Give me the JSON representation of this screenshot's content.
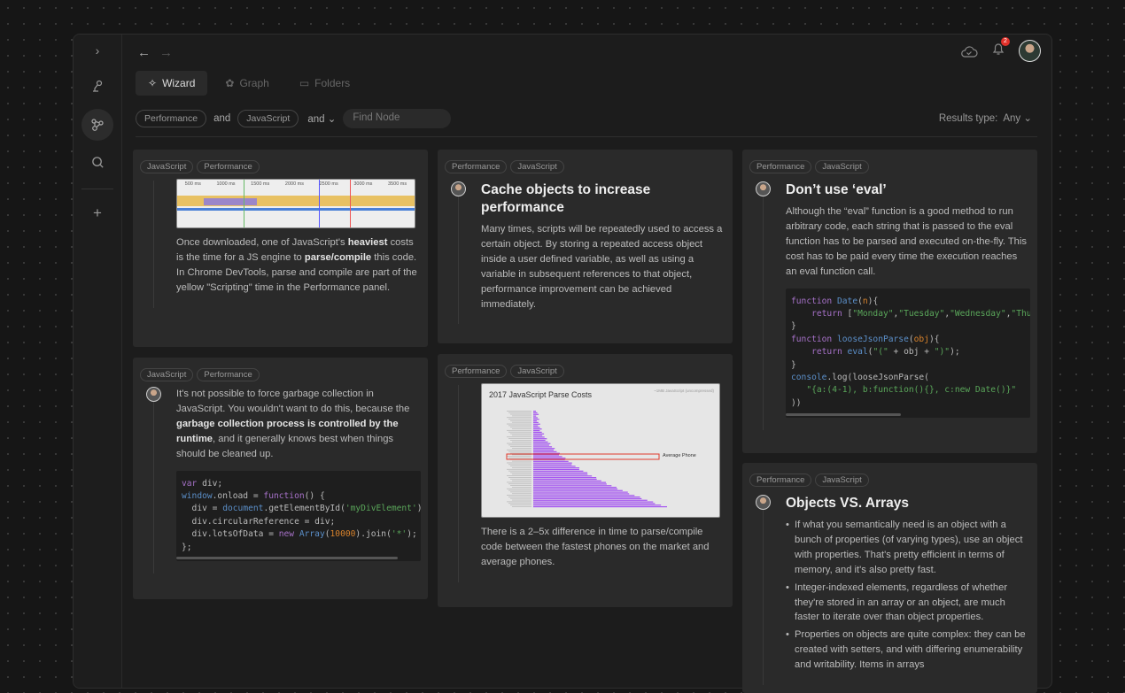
{
  "nav": {
    "back": "←",
    "forward": "→"
  },
  "tabs": [
    {
      "label": "Wizard",
      "icon": "magic-wand-icon"
    },
    {
      "label": "Graph",
      "icon": "graph-icon"
    },
    {
      "label": "Folders",
      "icon": "folder-icon"
    }
  ],
  "filters": {
    "tag1": "Performance",
    "and1": "and",
    "tag2": "JavaScript",
    "and2": "and",
    "find_placeholder": "Find Node"
  },
  "results": {
    "label": "Results type:",
    "value": "Any"
  },
  "notifications": {
    "count": "2"
  },
  "cards": {
    "c1": {
      "tags": [
        "JavaScript",
        "Performance"
      ],
      "devtools_ticks": [
        "500 ms",
        "1000 ms",
        "1500 ms",
        "2000 ms",
        "2500 ms",
        "3000 ms",
        "3500 ms"
      ],
      "t1": "Once downloaded, one of JavaScript's ",
      "b1": "heaviest",
      "t2": " costs is the time for a JS engine to ",
      "b2": "parse/compile",
      "t3": " this code. In Chrome DevTools, parse and compile are part of the yellow \"Scripting\" time in the Performance panel."
    },
    "c2": {
      "tags": [
        "JavaScript",
        "Performance"
      ],
      "t1": "It's not possible to force garbage collection in JavaScript. You wouldn't want to do this, because the ",
      "b1": "garbage collection process is controlled by the runtime",
      "t2": ", and it generally knows best when things should be cleaned up."
    },
    "c3": {
      "tags": [
        "Performance",
        "JavaScript"
      ],
      "title": "Cache objects to increase performance",
      "text": "Many times, scripts will be repeatedly used to access a certain object. By storing a repeated access object inside a user defined variable, as well as using a variable in subsequent references to that object, performance improvement can be achieved immediately."
    },
    "c4": {
      "tags": [
        "Performance",
        "JavaScript"
      ],
      "chart_title": "2017 JavaScript Parse Costs",
      "chart_note": "~1MB JavaScript (uncompressed)",
      "chart_label": "Average Phone",
      "text": "There is a 2–5x difference in time to parse/compile code between the fastest phones on the market and average phones."
    },
    "c5": {
      "tags": [
        "Performance",
        "JavaScript"
      ],
      "title": "Don’t use ‘eval’",
      "text": "Although the “eval” function is a good method to run arbitrary code, each string that is passed to the eval function has to be parsed and executed on-the-fly. This cost has to be paid every time the execution reaches an eval function call."
    },
    "c6": {
      "tags": [
        "Performance",
        "JavaScript"
      ],
      "title": "Objects VS. Arrays",
      "items": [
        "If what you semantically need is an object with a bunch of properties (of varying types), use an object with properties. That's pretty efficient in terms of memory, and it's also pretty fast.",
        "Integer-indexed elements, regardless of whether they're stored in an array or an object, are much faster to iterate over than object properties.",
        "Properties on objects are quite complex: they can be created with setters, and with differing enumerability and writability. Items in arrays"
      ]
    }
  }
}
